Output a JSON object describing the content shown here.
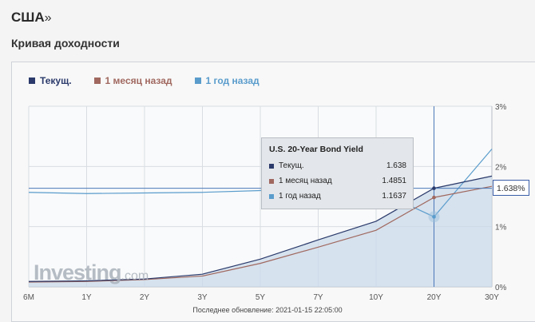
{
  "header": {
    "country": "США",
    "arrow": "»",
    "subtitle": "Кривая доходности"
  },
  "watermark": {
    "brand": "Investing",
    "suffix": ".com"
  },
  "footnote": "Последнее обновление: 2021-01-15 22:05:00",
  "tooltip": {
    "title": "U.S. 20-Year Bond Yield",
    "rows": [
      {
        "label": "Текущ.",
        "value": "1.638",
        "color": "#2b3a6b"
      },
      {
        "label": "1 месяц назад",
        "value": "1.4851",
        "color": "#a0685f"
      },
      {
        "label": "1 год назад",
        "value": "1.1637",
        "color": "#5a9ccc"
      }
    ]
  },
  "current_label": "1.638%",
  "chart_data": {
    "type": "line",
    "title": "",
    "categories": [
      "6M",
      "1Y",
      "2Y",
      "3Y",
      "5Y",
      "7Y",
      "10Y",
      "20Y",
      "30Y"
    ],
    "y_ticks": [
      "0%",
      "1%",
      "2%",
      "3%"
    ],
    "ylim": [
      0,
      3
    ],
    "grid": true,
    "legend_position": "top-left",
    "highlight_category": "20Y",
    "series": [
      {
        "name": "Текущ.",
        "color": "#2b3a6b",
        "values": [
          0.09,
          0.1,
          0.13,
          0.21,
          0.46,
          0.78,
          1.09,
          1.638,
          1.84
        ]
      },
      {
        "name": "1 месяц назад",
        "color": "#a0685f",
        "values": [
          0.08,
          0.09,
          0.12,
          0.18,
          0.39,
          0.66,
          0.94,
          1.4851,
          1.67
        ]
      },
      {
        "name": "1 год назад",
        "color": "#5a9ccc",
        "values": [
          1.57,
          1.55,
          1.56,
          1.57,
          1.6,
          1.64,
          1.61,
          1.1637,
          2.29
        ]
      }
    ]
  }
}
